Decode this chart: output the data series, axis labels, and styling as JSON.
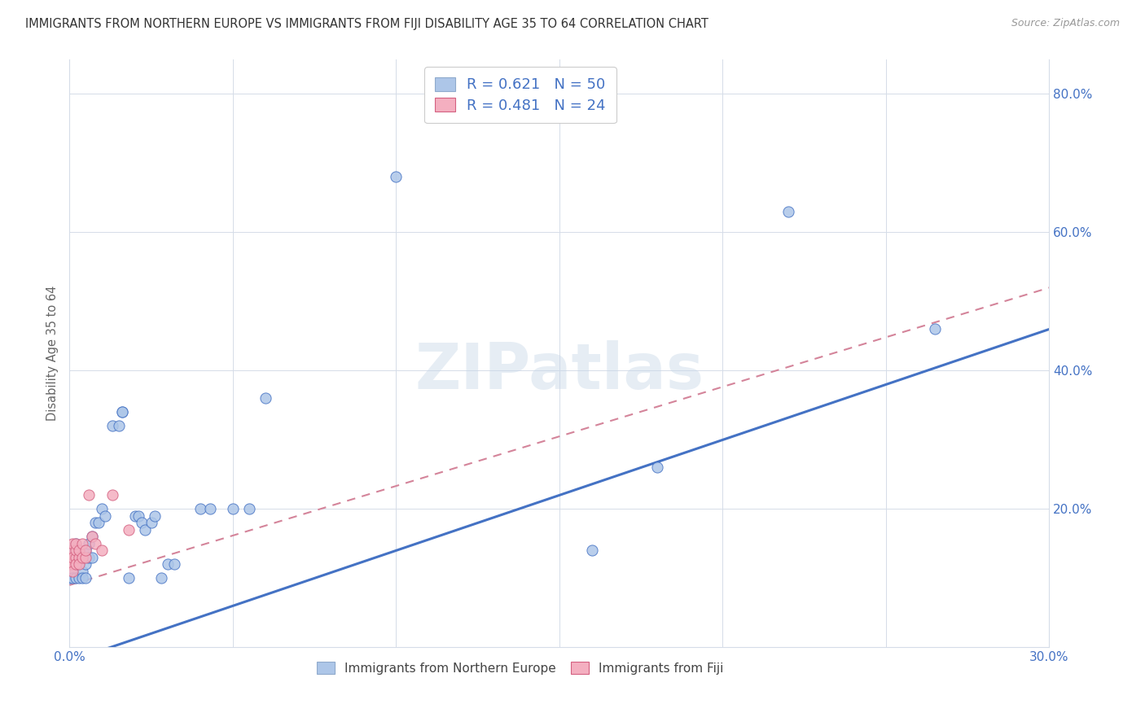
{
  "title": "IMMIGRANTS FROM NORTHERN EUROPE VS IMMIGRANTS FROM FIJI DISABILITY AGE 35 TO 64 CORRELATION CHART",
  "source": "Source: ZipAtlas.com",
  "ylabel": "Disability Age 35 to 64",
  "xlim": [
    0.0,
    0.3
  ],
  "ylim": [
    0.0,
    0.85
  ],
  "blue_R": 0.621,
  "blue_N": 50,
  "pink_R": 0.481,
  "pink_N": 24,
  "blue_color": "#adc6e8",
  "pink_color": "#f4afc0",
  "blue_line_color": "#4472c4",
  "pink_line_color": "#d4849a",
  "watermark": "ZIPatlas",
  "blue_scatter_x": [
    0.0,
    0.001,
    0.001,
    0.001,
    0.001,
    0.002,
    0.002,
    0.002,
    0.002,
    0.003,
    0.003,
    0.003,
    0.004,
    0.004,
    0.004,
    0.005,
    0.005,
    0.005,
    0.006,
    0.006,
    0.007,
    0.007,
    0.008,
    0.009,
    0.01,
    0.011,
    0.013,
    0.015,
    0.016,
    0.016,
    0.018,
    0.02,
    0.021,
    0.022,
    0.023,
    0.025,
    0.026,
    0.028,
    0.03,
    0.032,
    0.04,
    0.043,
    0.05,
    0.055,
    0.06,
    0.1,
    0.16,
    0.18,
    0.22,
    0.265
  ],
  "blue_scatter_y": [
    0.1,
    0.13,
    0.11,
    0.14,
    0.1,
    0.12,
    0.15,
    0.1,
    0.13,
    0.12,
    0.14,
    0.1,
    0.11,
    0.13,
    0.1,
    0.12,
    0.14,
    0.1,
    0.13,
    0.15,
    0.16,
    0.13,
    0.18,
    0.18,
    0.2,
    0.19,
    0.32,
    0.32,
    0.34,
    0.34,
    0.1,
    0.19,
    0.19,
    0.18,
    0.17,
    0.18,
    0.19,
    0.1,
    0.12,
    0.12,
    0.2,
    0.2,
    0.2,
    0.2,
    0.36,
    0.68,
    0.14,
    0.26,
    0.63,
    0.46
  ],
  "pink_scatter_x": [
    0.0,
    0.0,
    0.001,
    0.001,
    0.001,
    0.001,
    0.001,
    0.002,
    0.002,
    0.002,
    0.002,
    0.003,
    0.003,
    0.003,
    0.004,
    0.004,
    0.005,
    0.005,
    0.006,
    0.007,
    0.008,
    0.01,
    0.013,
    0.018
  ],
  "pink_scatter_y": [
    0.13,
    0.12,
    0.14,
    0.12,
    0.13,
    0.11,
    0.15,
    0.13,
    0.14,
    0.12,
    0.15,
    0.13,
    0.12,
    0.14,
    0.13,
    0.15,
    0.13,
    0.14,
    0.22,
    0.16,
    0.15,
    0.14,
    0.22,
    0.17
  ],
  "blue_line_x": [
    0.0,
    0.3
  ],
  "blue_line_y": [
    -0.02,
    0.46
  ],
  "pink_line_x": [
    0.0,
    0.3
  ],
  "pink_line_y": [
    0.09,
    0.52
  ]
}
